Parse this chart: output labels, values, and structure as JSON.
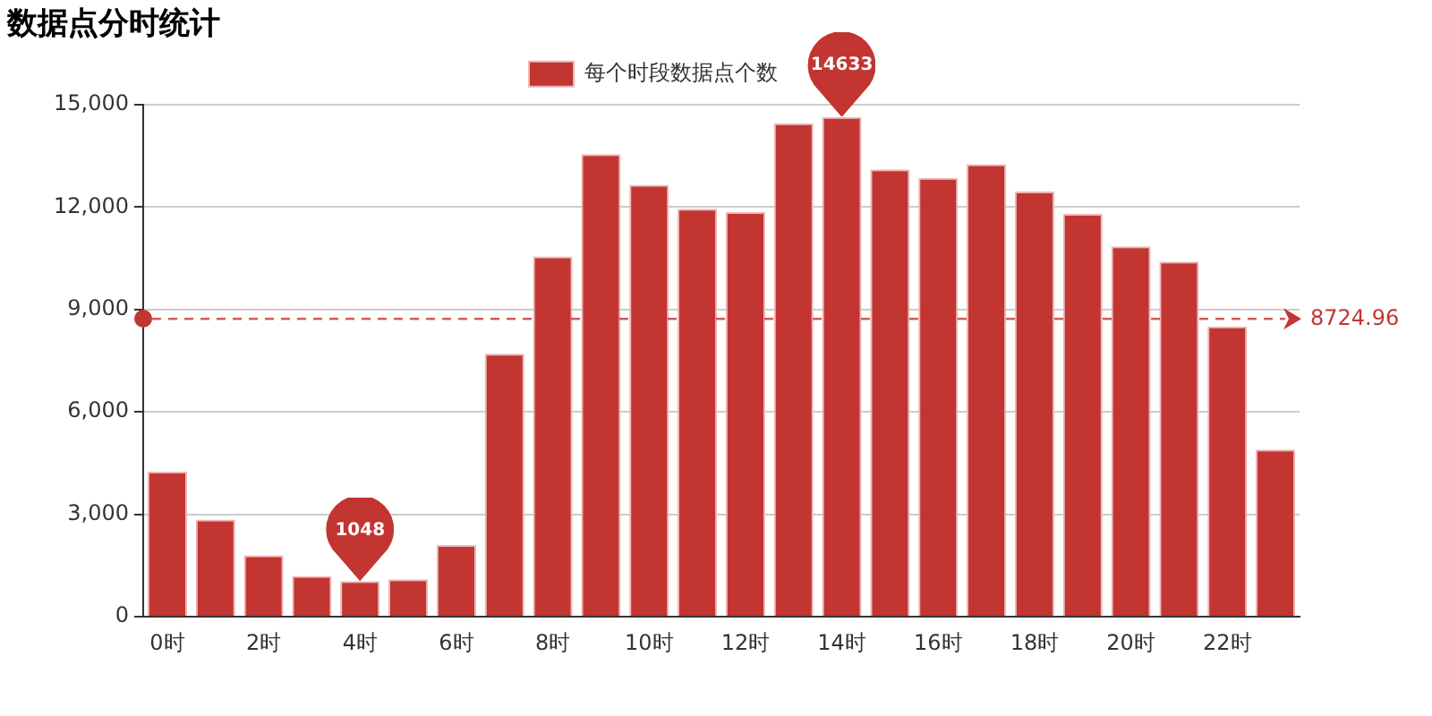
{
  "chart_data": {
    "type": "bar",
    "title": "数据点分时统计",
    "categories": [
      "0时",
      null,
      "2时",
      null,
      "4时",
      null,
      "6时",
      null,
      "8时",
      null,
      "10时",
      null,
      "12时",
      null,
      "14时",
      null,
      "16时",
      null,
      "18时",
      null,
      "20时",
      null,
      "22时",
      null
    ],
    "series": [
      {
        "name": "每个时段数据点个数",
        "color": "#c23531",
        "values": [
          4250,
          2850,
          1800,
          1200,
          1048,
          1100,
          2100,
          7700,
          10550,
          13550,
          12650,
          11950,
          11850,
          14450,
          14633,
          13100,
          12850,
          13250,
          12450,
          11800,
          10850,
          10400,
          8500,
          4900
        ]
      }
    ],
    "ylim": [
      0,
      15000
    ],
    "yticks": [
      {
        "value": 0,
        "label": "0"
      },
      {
        "value": 3000,
        "label": "3,000"
      },
      {
        "value": 6000,
        "label": "6,000"
      },
      {
        "value": 9000,
        "label": "9,000"
      },
      {
        "value": 12000,
        "label": "12,000"
      },
      {
        "value": 15000,
        "label": "15,000"
      }
    ],
    "grid": "y",
    "legend": "top",
    "ref_lines": [
      {
        "axis": "y",
        "value": 8724.96,
        "label": "8724.96",
        "color": "#c23531",
        "line_style": "dashed"
      }
    ],
    "annotations": [
      {
        "text": "14633",
        "x": "14时",
        "y": 14633
      },
      {
        "text": "1048",
        "x": "4时",
        "y": 1048
      }
    ]
  }
}
